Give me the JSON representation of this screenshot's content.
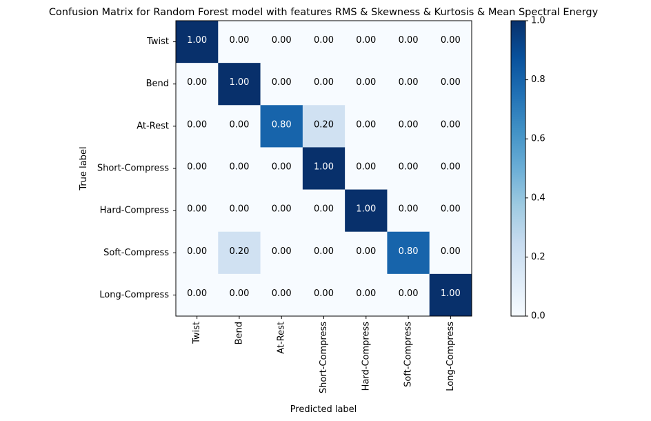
{
  "chart_data": {
    "type": "heatmap",
    "title": "Confusion Matrix for Random Forest model with features RMS & Skewness & Kurtosis & Mean Spectral Energy",
    "xlabel": "Predicted label",
    "ylabel": "True label",
    "row_labels": [
      "Twist",
      "Bend",
      "At-Rest",
      "Short-Compress",
      "Hard-Compress",
      "Soft-Compress",
      "Long-Compress"
    ],
    "col_labels": [
      "Twist",
      "Bend",
      "At-Rest",
      "Short-Compress",
      "Hard-Compress",
      "Soft-Compress",
      "Long-Compress"
    ],
    "values": [
      [
        1.0,
        0.0,
        0.0,
        0.0,
        0.0,
        0.0,
        0.0
      ],
      [
        0.0,
        1.0,
        0.0,
        0.0,
        0.0,
        0.0,
        0.0
      ],
      [
        0.0,
        0.0,
        0.8,
        0.2,
        0.0,
        0.0,
        0.0
      ],
      [
        0.0,
        0.0,
        0.0,
        1.0,
        0.0,
        0.0,
        0.0
      ],
      [
        0.0,
        0.0,
        0.0,
        0.0,
        1.0,
        0.0,
        0.0
      ],
      [
        0.0,
        0.2,
        0.0,
        0.0,
        0.0,
        0.8,
        0.0
      ],
      [
        0.0,
        0.0,
        0.0,
        0.0,
        0.0,
        0.0,
        1.0
      ]
    ],
    "colormap": "Blues",
    "colorbar": {
      "range": [
        0.0,
        1.0
      ],
      "ticks": [
        0.0,
        0.2,
        0.4,
        0.6,
        0.8,
        1.0
      ],
      "tick_labels": [
        "0.0",
        "0.2",
        "0.4",
        "0.6",
        "0.8",
        "1.0"
      ]
    }
  }
}
